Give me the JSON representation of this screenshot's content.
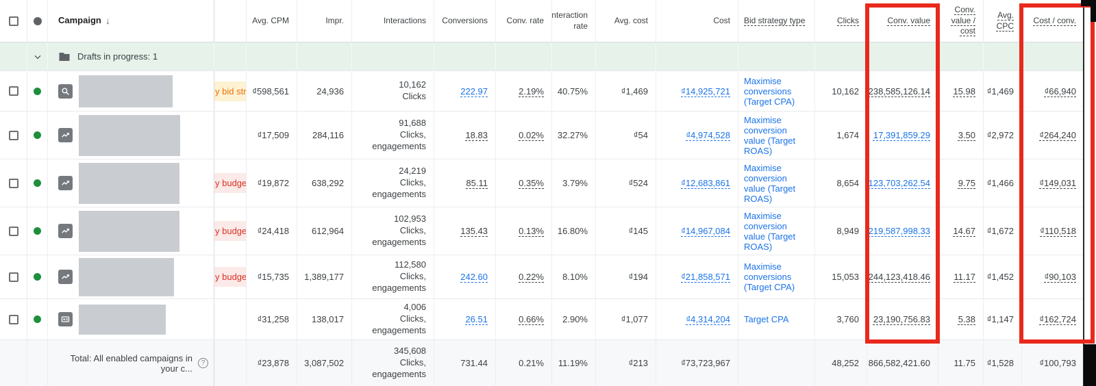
{
  "annotations": {
    "highlight_color": "#e8291c"
  },
  "header": {
    "campaign": "Campaign",
    "sort_arrow": "↓",
    "cols": {
      "avg_cpm": "Avg. CPM",
      "impr": "Impr.",
      "interactions": "Interactions",
      "conversions": "Conversions",
      "conv_rate": "Conv. rate",
      "interaction_rate": "Interaction rate",
      "avg_cost": "Avg. cost",
      "cost": "Cost",
      "bid_strategy": "Bid strategy type",
      "clicks": "Clicks",
      "conv_value": "Conv. value",
      "conv_value_cost": "Conv. value / cost",
      "avg_cpc": "Avg. CPC",
      "cost_conv": "Cost / conv."
    }
  },
  "drafts_row": {
    "label": "Drafts in progress: 1"
  },
  "rows": [
    {
      "icon": "search",
      "status": "y bid stra",
      "status_type": "warning",
      "avg_cpm": "₫598,561",
      "impr": "24,936",
      "interactions": "10,162",
      "interactions_sub": "Clicks",
      "conversions": "222.97",
      "conversions_style": "link",
      "conv_rate": "2.19%",
      "interaction_rate": "40.75%",
      "avg_cost": "₫1,469",
      "cost": "₫14,925,721",
      "bid_strategy": "Maximise conversions (Target CPA)",
      "clicks": "10,162",
      "conv_value": "238,585,126.14",
      "conv_value_style": "plain",
      "conv_value_cost": "15.98",
      "avg_cpc": "₫1,469",
      "cost_conv": "₫66,940"
    },
    {
      "icon": "trend",
      "status": "",
      "status_type": "",
      "avg_cpm": "₫17,509",
      "impr": "284,116",
      "interactions": "91,688",
      "interactions_sub": "Clicks, engagements",
      "conversions": "18.83",
      "conversions_style": "plain",
      "conv_rate": "0.02%",
      "interaction_rate": "32.27%",
      "avg_cost": "₫54",
      "cost": "₫4,974,528",
      "bid_strategy": "Maximise conversion value (Target ROAS)",
      "clicks": "1,674",
      "conv_value": "17,391,859.29",
      "conv_value_style": "link",
      "conv_value_cost": "3.50",
      "avg_cpc": "₫2,972",
      "cost_conv": "₫264,240"
    },
    {
      "icon": "trend",
      "status": "y budget",
      "status_type": "danger",
      "avg_cpm": "₫19,872",
      "impr": "638,292",
      "interactions": "24,219",
      "interactions_sub": "Clicks, engagements",
      "conversions": "85.11",
      "conversions_style": "plain",
      "conv_rate": "0.35%",
      "interaction_rate": "3.79%",
      "avg_cost": "₫524",
      "cost": "₫12,683,861",
      "bid_strategy": "Maximise conversion value (Target ROAS)",
      "clicks": "8,654",
      "conv_value": "123,703,262.54",
      "conv_value_style": "link",
      "conv_value_cost": "9.75",
      "avg_cpc": "₫1,466",
      "cost_conv": "₫149,031"
    },
    {
      "icon": "trend",
      "status": "y budget",
      "status_type": "danger",
      "avg_cpm": "₫24,418",
      "impr": "612,964",
      "interactions": "102,953",
      "interactions_sub": "Clicks, engagements",
      "conversions": "135.43",
      "conversions_style": "plain",
      "conv_rate": "0.13%",
      "interaction_rate": "16.80%",
      "avg_cost": "₫145",
      "cost": "₫14,967,084",
      "bid_strategy": "Maximise conversion value (Target ROAS)",
      "clicks": "8,949",
      "conv_value": "219,587,998.33",
      "conv_value_style": "link",
      "conv_value_cost": "14.67",
      "avg_cpc": "₫1,672",
      "cost_conv": "₫110,518"
    },
    {
      "icon": "trend",
      "status": "y budget",
      "status_type": "danger",
      "avg_cpm": "₫15,735",
      "impr": "1,389,177",
      "interactions": "112,580",
      "interactions_sub": "Clicks, engagements",
      "conversions": "242.60",
      "conversions_style": "link",
      "conv_rate": "0.22%",
      "interaction_rate": "8.10%",
      "avg_cost": "₫194",
      "cost": "₫21,858,571",
      "bid_strategy": "Maximise conversions (Target CPA)",
      "clicks": "15,053",
      "conv_value": "244,123,418.46",
      "conv_value_style": "plain",
      "conv_value_cost": "11.17",
      "avg_cpc": "₫1,452",
      "cost_conv": "₫90,103"
    },
    {
      "icon": "display",
      "status": "",
      "status_type": "",
      "avg_cpm": "₫31,258",
      "impr": "138,017",
      "interactions": "4,006",
      "interactions_sub": "Clicks, engagements",
      "conversions": "26.51",
      "conversions_style": "link",
      "conv_rate": "0.66%",
      "interaction_rate": "2.90%",
      "avg_cost": "₫1,077",
      "cost": "₫4,314,204",
      "bid_strategy": "Target CPA",
      "clicks": "3,760",
      "conv_value": "23,190,756.83",
      "conv_value_style": "plain",
      "conv_value_cost": "5.38",
      "avg_cpc": "₫1,147",
      "cost_conv": "₫162,724"
    }
  ],
  "total_row": {
    "label": "Total: All enabled campaigns in your c...",
    "help_glyph": "?",
    "avg_cpm": "₫23,878",
    "impr": "3,087,502",
    "interactions": "345,608",
    "interactions_sub": "Clicks, engagements",
    "conversions": "731.44",
    "conv_rate": "0.21%",
    "interaction_rate": "11.19%",
    "avg_cost": "₫213",
    "cost": "₫73,723,967",
    "bid_strategy": "",
    "clicks": "48,252",
    "conv_value": "866,582,421.60",
    "conv_value_cost": "11.75",
    "avg_cpc": "₫1,528",
    "cost_conv": "₫100,793"
  }
}
